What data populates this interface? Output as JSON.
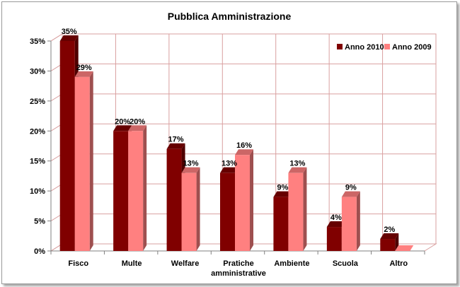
{
  "chart_data": {
    "type": "bar",
    "title": "Pubblica Amministrazione",
    "xlabel": "",
    "ylabel": "",
    "categories": [
      "Fisco",
      "Multe",
      "Welfare",
      "Pratiche amministrative",
      "Ambiente",
      "Scuola",
      "Altro"
    ],
    "series": [
      {
        "name": "Anno 2010",
        "values": [
          35,
          20,
          17,
          13,
          9,
          4,
          2
        ],
        "labels": [
          "35%",
          "20%",
          "17%",
          "13%",
          "9%",
          "4%",
          "2%"
        ],
        "color": "#800000"
      },
      {
        "name": "Anno 2009",
        "values": [
          29,
          20,
          13,
          16,
          13,
          9,
          0
        ],
        "labels": [
          "29%",
          "20%",
          "13%",
          "16%",
          "13%",
          "9%",
          ""
        ],
        "color": "#ff8080"
      }
    ],
    "ylim": [
      0,
      35
    ],
    "yticks": [
      0,
      5,
      10,
      15,
      20,
      25,
      30,
      35
    ],
    "ytick_labels": [
      "0%",
      "5%",
      "10%",
      "15%",
      "20%",
      "25%",
      "30%",
      "35%"
    ],
    "grid": true,
    "gridline_color": "#d9a0a0",
    "legend_position": "top-right",
    "style": "3d-clustered-column"
  }
}
